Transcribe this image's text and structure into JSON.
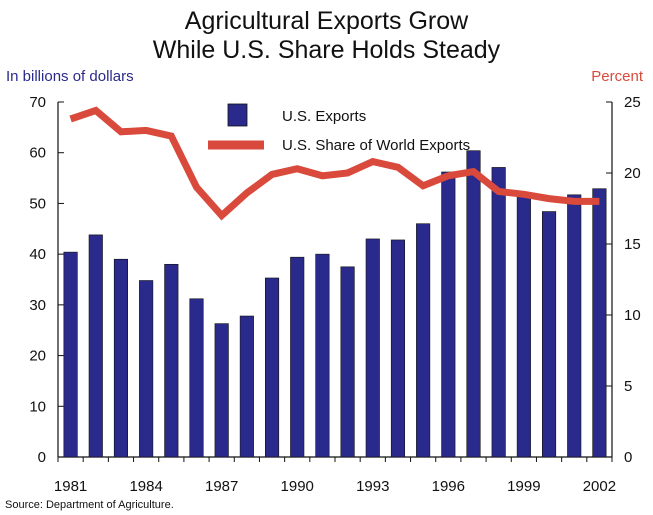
{
  "chart_data": {
    "type": "bar",
    "title": [
      "Agricultural Exports Grow",
      "While U.S. Share Holds Steady"
    ],
    "ylabel": "In billions of dollars",
    "y2label": "Percent",
    "ylim": [
      0,
      70
    ],
    "y2lim": [
      0,
      25
    ],
    "yticks": [
      "0",
      "10",
      "20",
      "30",
      "40",
      "50",
      "60",
      "70"
    ],
    "y2ticks": [
      "0",
      "5",
      "10",
      "15",
      "20",
      "25"
    ],
    "xticklabels": [
      "1981",
      "1984",
      "1987",
      "1990",
      "1993",
      "1996",
      "1999",
      "2002"
    ],
    "categories": [
      "1981",
      "1982",
      "1983",
      "1984",
      "1985",
      "1986",
      "1987",
      "1988",
      "1989",
      "1990",
      "1991",
      "1992",
      "1993",
      "1994",
      "1995",
      "1996",
      "1997",
      "1998",
      "1999",
      "2000",
      "2001",
      "2002"
    ],
    "series": [
      {
        "name": "U.S. Exports",
        "type": "bar",
        "axis": "left",
        "color": "#2a2a8c",
        "values": [
          40.4,
          43.8,
          39.0,
          34.8,
          38.0,
          31.2,
          26.3,
          27.8,
          35.3,
          39.4,
          40.0,
          37.5,
          43.0,
          42.8,
          46.0,
          56.2,
          60.4,
          57.1,
          51.5,
          48.4,
          51.7,
          52.9
        ]
      },
      {
        "name": "U.S. Share of World Exports",
        "type": "line",
        "axis": "right",
        "color": "#d94a3c",
        "values": [
          23.8,
          24.4,
          22.9,
          23.0,
          22.6,
          19.0,
          17.0,
          18.6,
          19.9,
          20.3,
          19.8,
          20.0,
          20.8,
          20.4,
          19.1,
          19.8,
          20.1,
          18.7,
          18.5,
          18.2,
          18.0,
          18.0
        ]
      }
    ],
    "legend": "top-center",
    "grid": false,
    "source": "Source:  Department of Agriculture."
  }
}
